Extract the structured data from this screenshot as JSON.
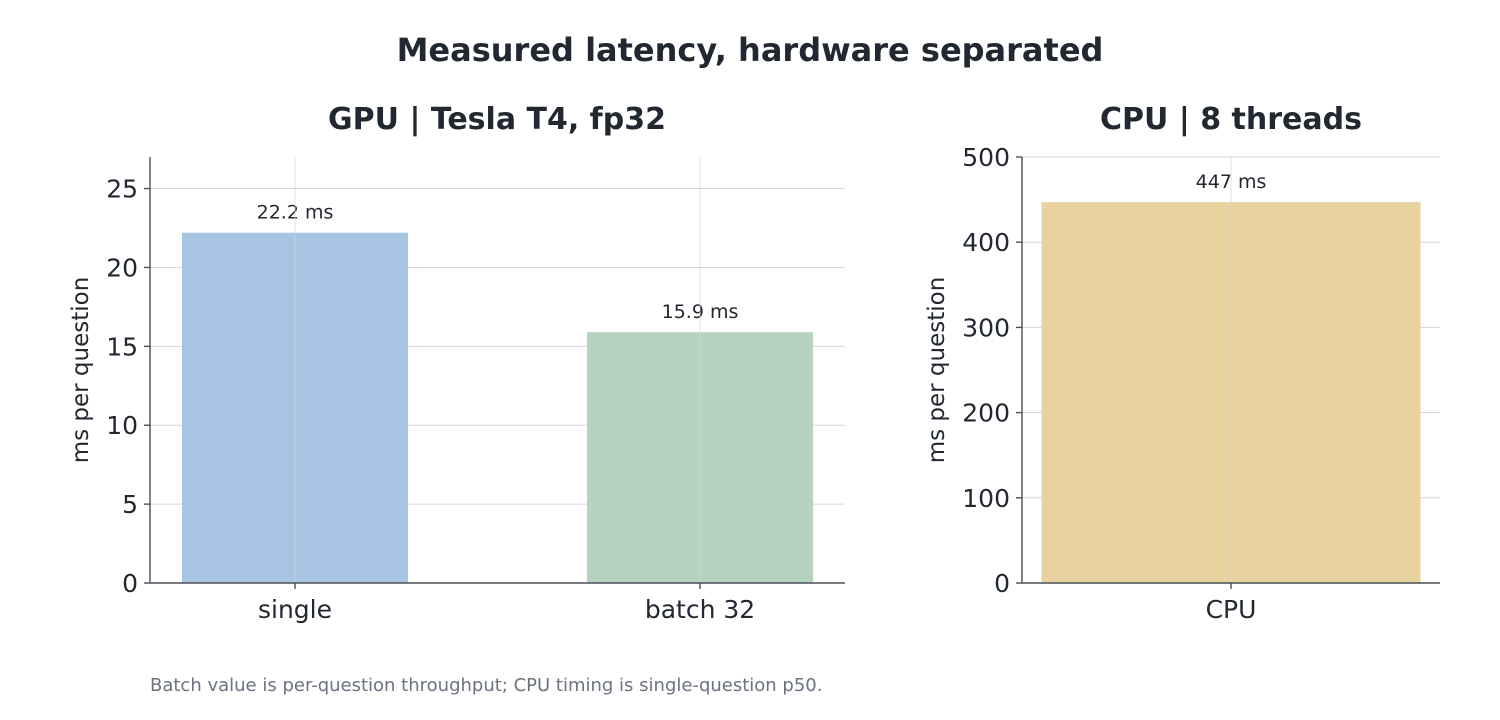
{
  "title": "Measured latency, hardware separated",
  "footnote": "Batch value is per-question throughput; CPU timing is single-question p50.",
  "chart_data": [
    {
      "type": "bar",
      "title": "GPU | Tesla T4, fp32",
      "xlabel": "",
      "ylabel": "ms per question",
      "categories": [
        "single",
        "batch 32"
      ],
      "values": [
        22.2,
        15.9
      ],
      "data_labels": [
        "22.2 ms",
        "15.9 ms"
      ],
      "colors": [
        "#a8c4e3",
        "#b6d3bf"
      ],
      "ylim": [
        0,
        27
      ],
      "yticks": [
        0,
        5,
        10,
        15,
        20,
        25
      ],
      "grid": true
    },
    {
      "type": "bar",
      "title": "CPU | 8 threads",
      "xlabel": "",
      "ylabel": "ms per question",
      "categories": [
        "CPU"
      ],
      "values": [
        447
      ],
      "data_labels": [
        "447 ms"
      ],
      "colors": [
        "#e8d3a0"
      ],
      "ylim": [
        0,
        500
      ],
      "yticks": [
        0,
        100,
        200,
        300,
        400,
        500
      ],
      "grid": true
    }
  ]
}
